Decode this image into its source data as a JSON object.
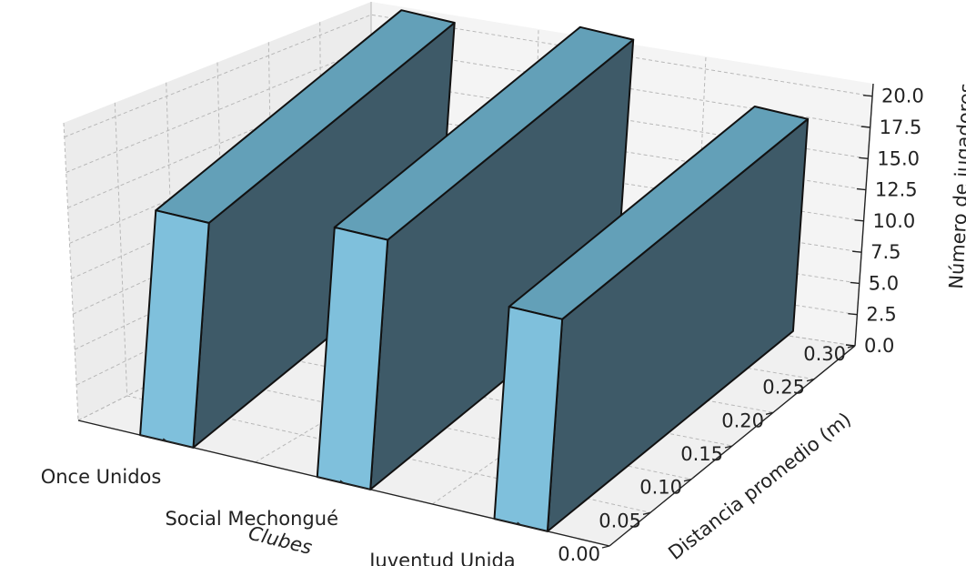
{
  "chart_data": {
    "type": "bar3d",
    "categories": [
      "Once Unidos",
      "Social Mechongué",
      "Juventud Unida"
    ],
    "series": [
      {
        "values": [
          18,
          20,
          17
        ],
        "depth": [
          0.3,
          0.3,
          0.3
        ]
      }
    ],
    "xlabel": "Clubes",
    "ylabel": "Distancia promedio (m)",
    "zlabel": "Número de jugadores",
    "y_ticks": [
      "0.00",
      "0.05",
      "0.10",
      "0.15",
      "0.20",
      "0.25",
      "0.30"
    ],
    "z_ticks": [
      "0.0",
      "2.5",
      "5.0",
      "7.5",
      "10.0",
      "12.5",
      "15.0",
      "17.5",
      "20.0"
    ],
    "ylim": [
      0,
      0.3
    ],
    "zlim": [
      0,
      20
    ],
    "grid": true,
    "colors": {
      "bar_front": "#7fc0dc",
      "bar_side": "#3e5a68",
      "bar_top": "#63a0b8",
      "edge": "#111111"
    }
  }
}
